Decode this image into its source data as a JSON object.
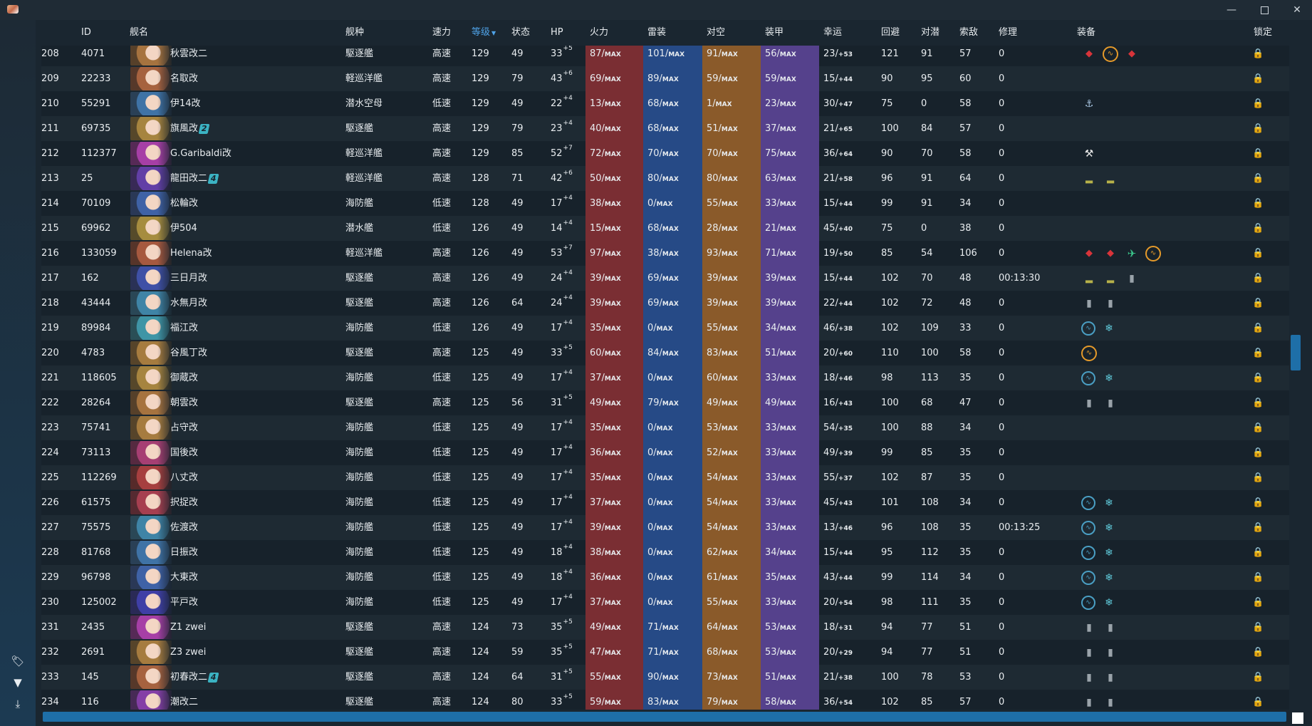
{
  "window": {
    "minimize": "—",
    "close": "✕"
  },
  "sidebar": [
    {
      "name": "tag-icon",
      "glyph": "🏷"
    },
    {
      "name": "filter-icon",
      "glyph": "▼"
    },
    {
      "name": "download-icon",
      "glyph": "⤓"
    }
  ],
  "columns": {
    "id": "ID",
    "name": "舰名",
    "type": "舰种",
    "speed": "速力",
    "level": "等级",
    "cond": "状态",
    "hp": "HP",
    "fp": "火力",
    "tp": "雷装",
    "aa": "对空",
    "ar": "装甲",
    "luck": "幸运",
    "ev": "回避",
    "asw": "对潜",
    "los": "索敌",
    "repair": "修理",
    "equip": "装备",
    "lock": "锁定"
  },
  "sort_column": "level",
  "max_suffix": "MAX",
  "colors": {
    "fp": "#7a2e33",
    "tp": "#264a86",
    "aa": "#8a5a2a",
    "ar": "#55418c",
    "accent": "#1e6fa8",
    "sort": "#4fa3e8"
  },
  "rows": [
    {
      "no": "208",
      "id": "4071",
      "name": "秋雲改二",
      "mark": "",
      "type": "駆逐艦",
      "speed": "高速",
      "level": "129",
      "cond": "49",
      "hp": "33",
      "hpb": "+5",
      "fp": "87/",
      "tp": "101/",
      "aa": "91/",
      "ar": "56/",
      "luck": "23/",
      "lb": "+53",
      "ev": "121",
      "asw": "91",
      "los": "57",
      "repair": "0",
      "equip": [
        "gun",
        "radar",
        "gun"
      ]
    },
    {
      "no": "209",
      "id": "22233",
      "name": "名取改",
      "mark": "",
      "type": "軽巡洋艦",
      "speed": "高速",
      "level": "129",
      "cond": "79",
      "hp": "43",
      "hpb": "+6",
      "fp": "69/",
      "tp": "89/",
      "aa": "59/",
      "ar": "59/",
      "luck": "15/",
      "lb": "+44",
      "ev": "90",
      "asw": "95",
      "los": "60",
      "repair": "0",
      "equip": []
    },
    {
      "no": "210",
      "id": "55291",
      "name": "伊14改",
      "mark": "",
      "type": "潜水空母",
      "speed": "低速",
      "level": "129",
      "cond": "49",
      "hp": "22",
      "hpb": "+4",
      "fp": "13/",
      "tp": "68/",
      "aa": "1/",
      "ar": "23/",
      "luck": "30/",
      "lb": "+47",
      "ev": "75",
      "asw": "0",
      "los": "58",
      "repair": "0",
      "equip": [
        "sub"
      ]
    },
    {
      "no": "211",
      "id": "69735",
      "name": "旗風改",
      "mark": "2",
      "type": "駆逐艦",
      "speed": "高速",
      "level": "129",
      "cond": "79",
      "hp": "23",
      "hpb": "+4",
      "fp": "40/",
      "tp": "68/",
      "aa": "51/",
      "ar": "37/",
      "luck": "21/",
      "lb": "+65",
      "ev": "100",
      "asw": "84",
      "los": "57",
      "repair": "0",
      "equip": []
    },
    {
      "no": "212",
      "id": "112377",
      "name": "G.Garibaldi改",
      "mark": "",
      "type": "軽巡洋艦",
      "speed": "高速",
      "level": "129",
      "cond": "85",
      "hp": "52",
      "hpb": "+7",
      "fp": "72/",
      "tp": "70/",
      "aa": "70/",
      "ar": "75/",
      "luck": "36/",
      "lb": "+64",
      "ev": "90",
      "asw": "70",
      "los": "58",
      "repair": "0",
      "equip": [
        "tool"
      ]
    },
    {
      "no": "213",
      "id": "25",
      "name": "龍田改二",
      "mark": "4",
      "type": "軽巡洋艦",
      "speed": "高速",
      "level": "128",
      "cond": "71",
      "hp": "42",
      "hpb": "+6",
      "fp": "50/",
      "tp": "80/",
      "aa": "80/",
      "ar": "63/",
      "luck": "21/",
      "lb": "+58",
      "ev": "96",
      "asw": "91",
      "los": "64",
      "repair": "0",
      "equip": [
        "boat",
        "boat"
      ]
    },
    {
      "no": "214",
      "id": "70109",
      "name": "松輪改",
      "mark": "",
      "type": "海防艦",
      "speed": "低速",
      "level": "128",
      "cond": "49",
      "hp": "17",
      "hpb": "+4",
      "fp": "38/",
      "tp": "0/",
      "aa": "55/",
      "ar": "33/",
      "luck": "15/",
      "lb": "+44",
      "ev": "99",
      "asw": "91",
      "los": "34",
      "repair": "0",
      "equip": []
    },
    {
      "no": "215",
      "id": "69962",
      "name": "伊504",
      "mark": "",
      "type": "潜水艦",
      "speed": "低速",
      "level": "126",
      "cond": "49",
      "hp": "14",
      "hpb": "+4",
      "fp": "15/",
      "tp": "68/",
      "aa": "28/",
      "ar": "21/",
      "luck": "45/",
      "lb": "+40",
      "ev": "75",
      "asw": "0",
      "los": "38",
      "repair": "0",
      "equip": []
    },
    {
      "no": "216",
      "id": "133059",
      "name": "Helena改",
      "mark": "",
      "type": "軽巡洋艦",
      "speed": "高速",
      "level": "126",
      "cond": "49",
      "hp": "53",
      "hpb": "+7",
      "fp": "97/",
      "tp": "38/",
      "aa": "93/",
      "ar": "71/",
      "luck": "19/",
      "lb": "+50",
      "ev": "85",
      "asw": "54",
      "los": "106",
      "repair": "0",
      "equip": [
        "gun",
        "gun",
        "plane",
        "radar"
      ]
    },
    {
      "no": "217",
      "id": "162",
      "name": "三日月改",
      "mark": "",
      "type": "駆逐艦",
      "speed": "高速",
      "level": "126",
      "cond": "49",
      "hp": "24",
      "hpb": "+4",
      "fp": "39/",
      "tp": "69/",
      "aa": "39/",
      "ar": "39/",
      "luck": "15/",
      "lb": "+44",
      "ev": "102",
      "asw": "70",
      "los": "48",
      "repair": "00:13:30",
      "equip": [
        "boat",
        "boat",
        "drum"
      ]
    },
    {
      "no": "218",
      "id": "43444",
      "name": "水無月改",
      "mark": "",
      "type": "駆逐艦",
      "speed": "高速",
      "level": "126",
      "cond": "64",
      "hp": "24",
      "hpb": "+4",
      "fp": "39/",
      "tp": "69/",
      "aa": "39/",
      "ar": "39/",
      "luck": "22/",
      "lb": "+44",
      "ev": "102",
      "asw": "72",
      "los": "48",
      "repair": "0",
      "equip": [
        "drum",
        "drum"
      ]
    },
    {
      "no": "219",
      "id": "89984",
      "name": "福江改",
      "mark": "",
      "type": "海防艦",
      "speed": "低速",
      "level": "126",
      "cond": "49",
      "hp": "17",
      "hpb": "+4",
      "fp": "35/",
      "tp": "0/",
      "aa": "55/",
      "ar": "34/",
      "luck": "46/",
      "lb": "+38",
      "ev": "102",
      "asw": "109",
      "los": "33",
      "repair": "0",
      "equip": [
        "sonar",
        "depth"
      ]
    },
    {
      "no": "220",
      "id": "4783",
      "name": "谷風丁改",
      "mark": "",
      "type": "駆逐艦",
      "speed": "高速",
      "level": "125",
      "cond": "49",
      "hp": "33",
      "hpb": "+5",
      "fp": "60/",
      "tp": "84/",
      "aa": "83/",
      "ar": "51/",
      "luck": "20/",
      "lb": "+60",
      "ev": "110",
      "asw": "100",
      "los": "58",
      "repair": "0",
      "equip": [
        "radar"
      ]
    },
    {
      "no": "221",
      "id": "118605",
      "name": "御蔵改",
      "mark": "",
      "type": "海防艦",
      "speed": "低速",
      "level": "125",
      "cond": "49",
      "hp": "17",
      "hpb": "+4",
      "fp": "37/",
      "tp": "0/",
      "aa": "60/",
      "ar": "33/",
      "luck": "18/",
      "lb": "+46",
      "ev": "98",
      "asw": "113",
      "los": "35",
      "repair": "0",
      "equip": [
        "sonar",
        "depth"
      ]
    },
    {
      "no": "222",
      "id": "28264",
      "name": "朝雲改",
      "mark": "",
      "type": "駆逐艦",
      "speed": "高速",
      "level": "125",
      "cond": "56",
      "hp": "31",
      "hpb": "+5",
      "fp": "49/",
      "tp": "79/",
      "aa": "49/",
      "ar": "49/",
      "luck": "16/",
      "lb": "+43",
      "ev": "100",
      "asw": "68",
      "los": "47",
      "repair": "0",
      "equip": [
        "drum",
        "drum"
      ]
    },
    {
      "no": "223",
      "id": "75741",
      "name": "占守改",
      "mark": "",
      "type": "海防艦",
      "speed": "低速",
      "level": "125",
      "cond": "49",
      "hp": "17",
      "hpb": "+4",
      "fp": "35/",
      "tp": "0/",
      "aa": "53/",
      "ar": "33/",
      "luck": "54/",
      "lb": "+35",
      "ev": "100",
      "asw": "88",
      "los": "34",
      "repair": "0",
      "equip": []
    },
    {
      "no": "224",
      "id": "73113",
      "name": "国後改",
      "mark": "",
      "type": "海防艦",
      "speed": "低速",
      "level": "125",
      "cond": "49",
      "hp": "17",
      "hpb": "+4",
      "fp": "36/",
      "tp": "0/",
      "aa": "52/",
      "ar": "33/",
      "luck": "49/",
      "lb": "+39",
      "ev": "99",
      "asw": "85",
      "los": "35",
      "repair": "0",
      "equip": []
    },
    {
      "no": "225",
      "id": "112269",
      "name": "八丈改",
      "mark": "",
      "type": "海防艦",
      "speed": "低速",
      "level": "125",
      "cond": "49",
      "hp": "17",
      "hpb": "+4",
      "fp": "35/",
      "tp": "0/",
      "aa": "54/",
      "ar": "33/",
      "luck": "55/",
      "lb": "+37",
      "ev": "102",
      "asw": "87",
      "los": "35",
      "repair": "0",
      "equip": []
    },
    {
      "no": "226",
      "id": "61575",
      "name": "択捉改",
      "mark": "",
      "type": "海防艦",
      "speed": "低速",
      "level": "125",
      "cond": "49",
      "hp": "17",
      "hpb": "+4",
      "fp": "37/",
      "tp": "0/",
      "aa": "54/",
      "ar": "33/",
      "luck": "45/",
      "lb": "+43",
      "ev": "101",
      "asw": "108",
      "los": "34",
      "repair": "0",
      "equip": [
        "sonar",
        "depth"
      ]
    },
    {
      "no": "227",
      "id": "75575",
      "name": "佐渡改",
      "mark": "",
      "type": "海防艦",
      "speed": "低速",
      "level": "125",
      "cond": "49",
      "hp": "17",
      "hpb": "+4",
      "fp": "39/",
      "tp": "0/",
      "aa": "54/",
      "ar": "33/",
      "luck": "13/",
      "lb": "+46",
      "ev": "96",
      "asw": "108",
      "los": "35",
      "repair": "00:13:25",
      "equip": [
        "sonar",
        "depth"
      ]
    },
    {
      "no": "228",
      "id": "81768",
      "name": "日振改",
      "mark": "",
      "type": "海防艦",
      "speed": "低速",
      "level": "125",
      "cond": "49",
      "hp": "18",
      "hpb": "+4",
      "fp": "38/",
      "tp": "0/",
      "aa": "62/",
      "ar": "34/",
      "luck": "15/",
      "lb": "+44",
      "ev": "95",
      "asw": "112",
      "los": "35",
      "repair": "0",
      "equip": [
        "sonar",
        "depth"
      ]
    },
    {
      "no": "229",
      "id": "96798",
      "name": "大東改",
      "mark": "",
      "type": "海防艦",
      "speed": "低速",
      "level": "125",
      "cond": "49",
      "hp": "18",
      "hpb": "+4",
      "fp": "36/",
      "tp": "0/",
      "aa": "61/",
      "ar": "35/",
      "luck": "43/",
      "lb": "+44",
      "ev": "99",
      "asw": "114",
      "los": "34",
      "repair": "0",
      "equip": [
        "sonar",
        "depth"
      ]
    },
    {
      "no": "230",
      "id": "125002",
      "name": "平戸改",
      "mark": "",
      "type": "海防艦",
      "speed": "低速",
      "level": "125",
      "cond": "49",
      "hp": "17",
      "hpb": "+4",
      "fp": "37/",
      "tp": "0/",
      "aa": "55/",
      "ar": "33/",
      "luck": "20/",
      "lb": "+54",
      "ev": "98",
      "asw": "111",
      "los": "35",
      "repair": "0",
      "equip": [
        "sonar",
        "depth"
      ]
    },
    {
      "no": "231",
      "id": "2435",
      "name": "Z1 zwei",
      "mark": "",
      "type": "駆逐艦",
      "speed": "高速",
      "level": "124",
      "cond": "73",
      "hp": "35",
      "hpb": "+5",
      "fp": "49/",
      "tp": "71/",
      "aa": "64/",
      "ar": "53/",
      "luck": "18/",
      "lb": "+31",
      "ev": "94",
      "asw": "77",
      "los": "51",
      "repair": "0",
      "equip": [
        "drum",
        "drum"
      ]
    },
    {
      "no": "232",
      "id": "2691",
      "name": "Z3 zwei",
      "mark": "",
      "type": "駆逐艦",
      "speed": "高速",
      "level": "124",
      "cond": "59",
      "hp": "35",
      "hpb": "+5",
      "fp": "47/",
      "tp": "71/",
      "aa": "68/",
      "ar": "53/",
      "luck": "20/",
      "lb": "+29",
      "ev": "94",
      "asw": "77",
      "los": "51",
      "repair": "0",
      "equip": [
        "drum",
        "drum"
      ]
    },
    {
      "no": "233",
      "id": "145",
      "name": "初春改二",
      "mark": "4",
      "type": "駆逐艦",
      "speed": "高速",
      "level": "124",
      "cond": "64",
      "hp": "31",
      "hpb": "+5",
      "fp": "55/",
      "tp": "90/",
      "aa": "73/",
      "ar": "51/",
      "luck": "21/",
      "lb": "+38",
      "ev": "100",
      "asw": "78",
      "los": "53",
      "repair": "0",
      "equip": [
        "drum",
        "drum"
      ]
    },
    {
      "no": "234",
      "id": "116",
      "name": "潮改二",
      "mark": "",
      "type": "駆逐艦",
      "speed": "高速",
      "level": "124",
      "cond": "80",
      "hp": "33",
      "hpb": "+5",
      "fp": "59/",
      "tp": "83/",
      "aa": "79/",
      "ar": "58/",
      "luck": "36/",
      "lb": "+54",
      "ev": "102",
      "asw": "85",
      "los": "57",
      "repair": "0",
      "equip": [
        "drum",
        "drum"
      ]
    }
  ]
}
